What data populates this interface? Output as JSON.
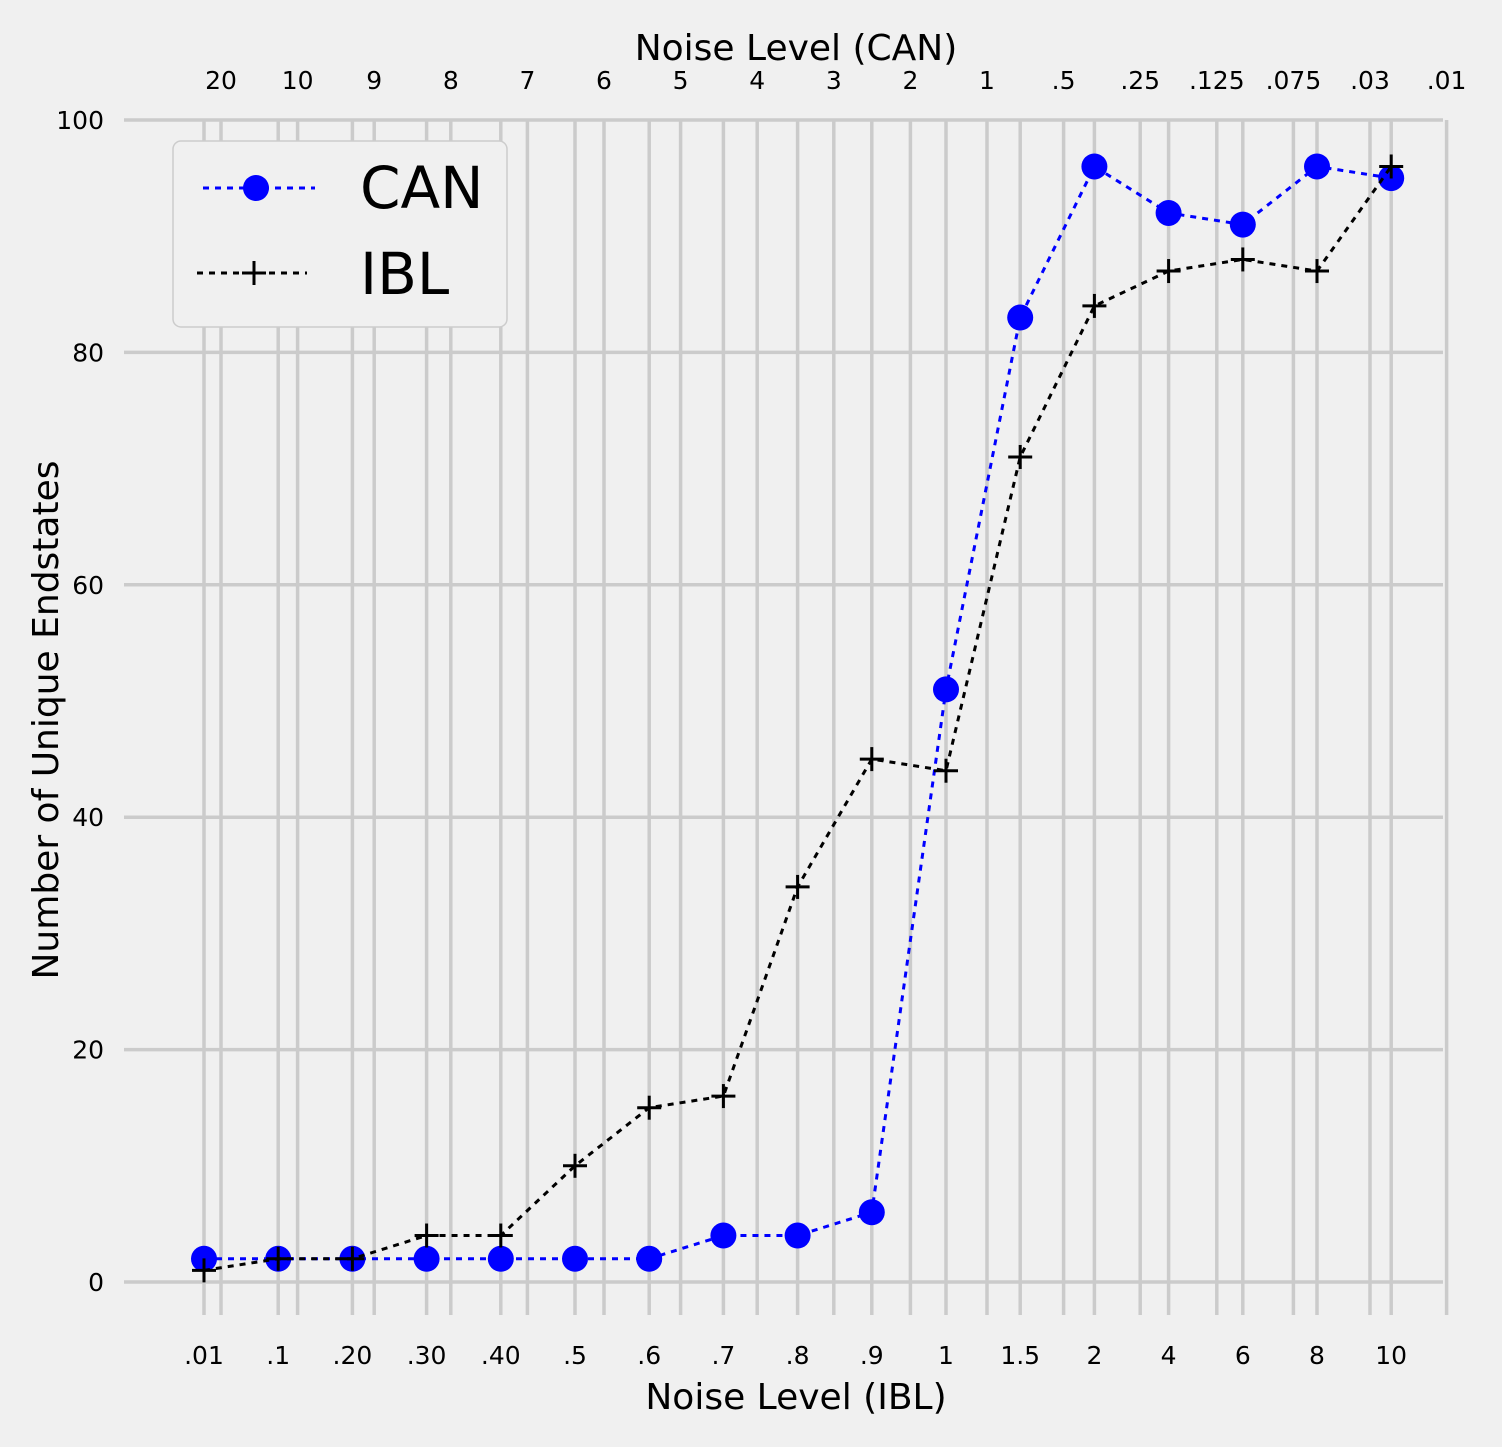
{
  "chart_data": {
    "type": "line",
    "x_axis_label": "Noise Level (IBL)",
    "x_top_axis_label": "Noise Level (CAN)",
    "y_axis_label": "Number of Unique Endstates",
    "x_ticks_bottom": [
      ".01",
      ".1",
      ".20",
      ".30",
      ".40",
      ".5",
      ".6",
      ".7",
      ".8",
      ".9",
      "1",
      "1.5",
      "2",
      "4",
      "6",
      "8",
      "10"
    ],
    "x_ticks_top": [
      "20",
      "10",
      "9",
      "8",
      "7",
      "6",
      "5",
      "4",
      "3",
      "2",
      "1",
      ".5",
      ".25",
      ".125",
      ".075",
      ".03",
      ".01"
    ],
    "y_ticks": [
      0,
      20,
      40,
      60,
      80,
      100
    ],
    "ylim": [
      -3,
      100
    ],
    "grid": true,
    "legend_position": "top-left",
    "series": [
      {
        "name": "CAN",
        "color": "#0000ff",
        "marker": "circle",
        "line_style": "dotted",
        "values": [
          2,
          2,
          2,
          2,
          2,
          2,
          2,
          4,
          4,
          6,
          51,
          83,
          96,
          92,
          91,
          96,
          95
        ]
      },
      {
        "name": "IBL",
        "color": "#000000",
        "marker": "plus",
        "line_style": "dotted",
        "values": [
          1,
          2,
          2,
          4,
          4,
          10,
          15,
          16,
          34,
          45,
          44,
          71,
          84,
          87,
          88,
          87,
          96
        ]
      }
    ]
  }
}
